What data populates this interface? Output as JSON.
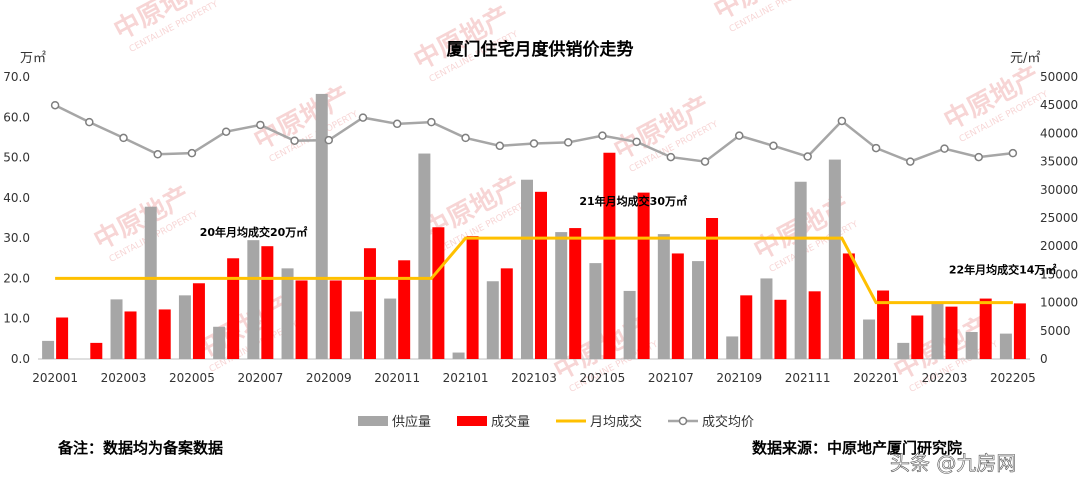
{
  "chart_data": {
    "type": "bar",
    "title": "厦门住宅月度供销价走势",
    "y_left_unit": "万㎡",
    "y_right_unit": "元/㎡",
    "ylim_left": [
      0,
      70
    ],
    "ylim_right": [
      0,
      50000
    ],
    "y_left_ticks": [
      "0.0",
      "10.0",
      "20.0",
      "30.0",
      "40.0",
      "50.0",
      "60.0",
      "70.0"
    ],
    "y_right_ticks": [
      "0",
      "5000",
      "10000",
      "15000",
      "20000",
      "25000",
      "30000",
      "35000",
      "40000",
      "45000",
      "50000"
    ],
    "categories": [
      "202001",
      "202002",
      "202003",
      "202004",
      "202005",
      "202006",
      "202007",
      "202008",
      "202009",
      "202010",
      "202011",
      "202012",
      "202101",
      "202102",
      "202103",
      "202104",
      "202105",
      "202106",
      "202107",
      "202108",
      "202109",
      "202110",
      "202111",
      "202112",
      "202201",
      "202202",
      "202203",
      "202204",
      "202205"
    ],
    "x_tick_labels": [
      "202001",
      "202003",
      "202005",
      "202007",
      "202009",
      "202011",
      "202101",
      "202103",
      "202105",
      "202107",
      "202109",
      "202111",
      "202201",
      "202203",
      "202205"
    ],
    "series": [
      {
        "name": "供应量",
        "kind": "bar",
        "axis": "left",
        "color": "#a6a6a6",
        "values": [
          4.5,
          0,
          14.8,
          37.8,
          15.8,
          8.0,
          29.5,
          22.5,
          65.8,
          11.8,
          15.0,
          51.0,
          1.6,
          19.3,
          44.5,
          31.5,
          23.8,
          16.9,
          31.0,
          24.3,
          5.6,
          20.0,
          44.0,
          49.5,
          9.8,
          4.0,
          14.0,
          6.7,
          6.3
        ]
      },
      {
        "name": "成交量",
        "kind": "bar",
        "axis": "left",
        "color": "#ff0000",
        "values": [
          10.3,
          4.0,
          11.8,
          12.3,
          18.8,
          25.0,
          28.0,
          19.5,
          19.5,
          27.5,
          24.5,
          32.7,
          30.5,
          22.5,
          41.5,
          32.5,
          51.2,
          41.3,
          26.2,
          35.0,
          15.8,
          14.7,
          16.8,
          26.2,
          17.0,
          10.8,
          13.0,
          15.0,
          13.8
        ]
      },
      {
        "name": "月均成交",
        "kind": "line",
        "axis": "left",
        "color": "#ffc000",
        "values": [
          20,
          20,
          20,
          20,
          20,
          20,
          20,
          20,
          20,
          20,
          20,
          20,
          30,
          30,
          30,
          30,
          30,
          30,
          30,
          30,
          30,
          30,
          30,
          30,
          14,
          14,
          14,
          14,
          14
        ]
      },
      {
        "name": "成交均价",
        "kind": "line-marker",
        "axis": "right",
        "color": "#a6a6a6",
        "values": [
          45000,
          42000,
          39200,
          36300,
          36500,
          40300,
          41500,
          38700,
          38800,
          42800,
          41700,
          42000,
          39200,
          37800,
          38200,
          38400,
          39600,
          38500,
          35800,
          35000,
          39600,
          37800,
          35900,
          42200,
          37400,
          35000,
          37300,
          35800,
          36500
        ]
      }
    ],
    "annotations": [
      {
        "text": "20年月均成交20万㎡",
        "x_index": 5.8,
        "y": 30.5
      },
      {
        "text": "21年月均成交30万㎡",
        "x_index": 16.9,
        "y": 38.2
      },
      {
        "text": "22年月均成交14万㎡",
        "x_index": 27.7,
        "y": 21.2
      }
    ],
    "legend_position": "bottom",
    "grid": false
  },
  "note": "备注：数据均为备案数据",
  "source": "数据来源：中原地产厦门研究院",
  "watermark_text": "中原地产",
  "watermark_subtext": "CENTALINE PROPERTY",
  "corner_watermark": "头条 @九房网"
}
